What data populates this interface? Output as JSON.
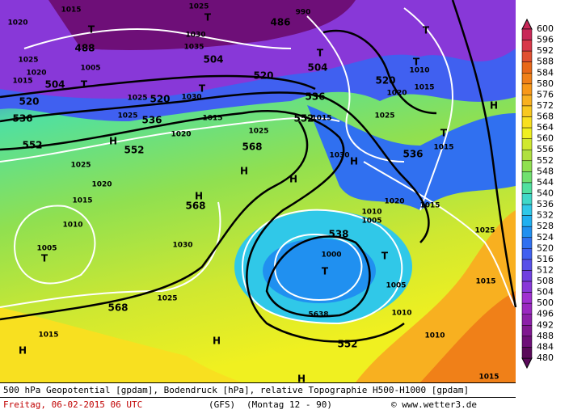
{
  "map": {
    "labels": [
      "1015",
      "1025",
      "T",
      "486",
      "990",
      "1020",
      "T",
      "488",
      "1030",
      "1035",
      "504",
      "T",
      "504",
      "520",
      "T",
      "T",
      "1010",
      "520",
      "1020",
      "1015",
      "1025",
      "1005",
      "1020",
      "1015",
      "504",
      "T",
      "520",
      "1025",
      "520",
      "T",
      "1030",
      "536",
      "1025",
      "536",
      "1025",
      "536",
      "1015",
      "552",
      "1015",
      "T",
      "1015",
      "536",
      "552",
      "H",
      "552",
      "1020",
      "1025",
      "568",
      "H",
      "H",
      "1030",
      "H",
      "1025",
      "1020",
      "H",
      "568",
      "1015",
      "1010",
      "1020",
      "1015",
      "1010",
      "1005",
      "538",
      "1025",
      "1005",
      "T",
      "1030",
      "1000",
      "T",
      "T",
      "1015",
      "1005",
      "568",
      "1025",
      "5638",
      "1010",
      "1015",
      "H",
      "552",
      "1010",
      "H",
      "H",
      "1015",
      "H"
    ]
  },
  "colorbar": {
    "ticks": [
      600,
      596,
      592,
      588,
      584,
      580,
      576,
      572,
      568,
      564,
      560,
      556,
      552,
      548,
      544,
      540,
      536,
      532,
      528,
      524,
      520,
      516,
      512,
      508,
      504,
      500,
      496,
      492,
      488,
      484,
      480
    ],
    "colors": [
      "#c82858",
      "#d83848",
      "#e05030",
      "#e86818",
      "#f08018",
      "#f89818",
      "#f8b020",
      "#f8c820",
      "#f8e020",
      "#f0f020",
      "#d0e830",
      "#b0e040",
      "#90e050",
      "#70e070",
      "#50e0a0",
      "#40d8c8",
      "#30c8e8",
      "#20b0f0",
      "#2090f0",
      "#3070f0",
      "#4060f0",
      "#5850e8",
      "#7040e0",
      "#8838d8",
      "#a030d0",
      "#9a28c0",
      "#8c20a8",
      "#801890",
      "#6e0f78",
      "#5a0a5a"
    ]
  },
  "footer": {
    "description": "500 hPa Geopotential [gpdam], Bodendruck [hPa], relative Topographie H500-H1000 [gpdam]",
    "date": "Freitag, 06-02-2015  06 UTC",
    "model": "(GFS)",
    "run": "(Montag 12 - 90)",
    "copyright": "© www.wetter3.de"
  }
}
